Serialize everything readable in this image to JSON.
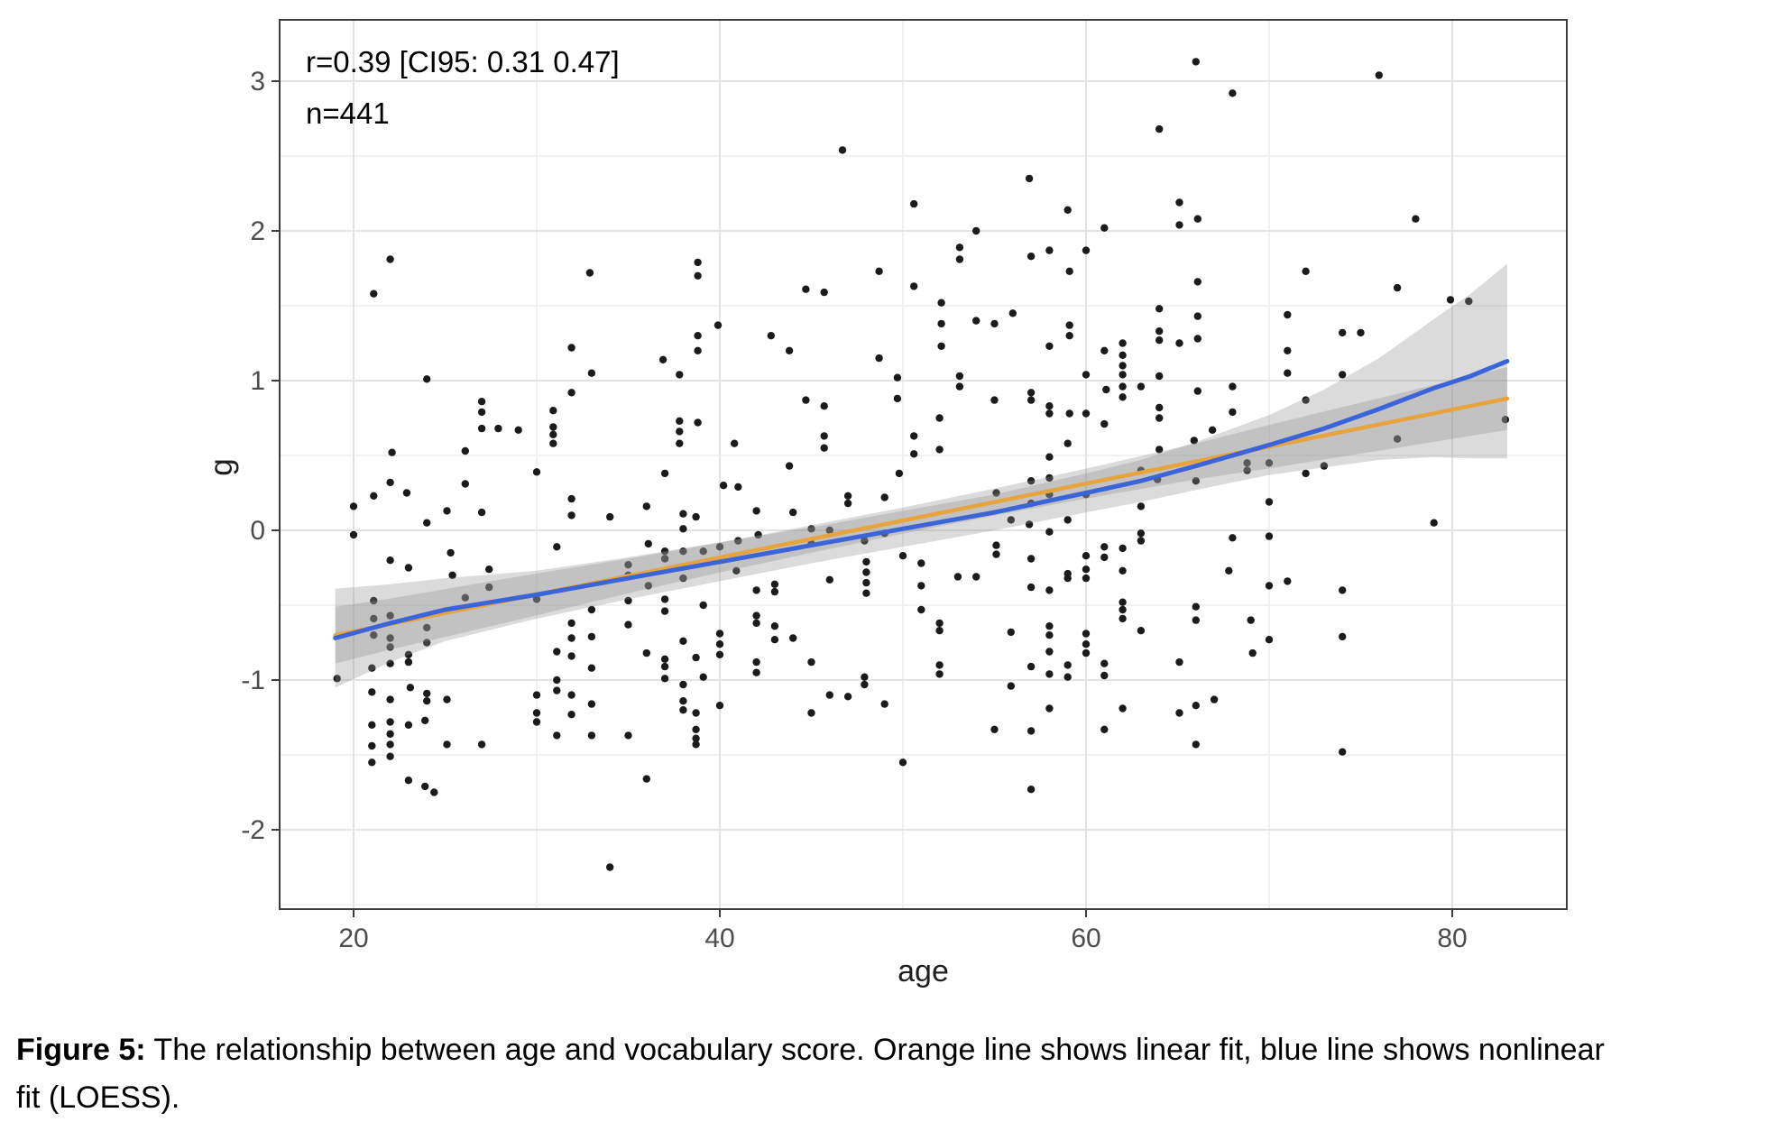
{
  "figure": {
    "stats_annotation": {
      "line1": "r=0.39 [CI95: 0.31 0.47]",
      "line2": "n=441"
    },
    "x_axis": {
      "title": "age",
      "major_ticks": [
        20,
        40,
        60,
        80
      ],
      "minor_ticks": [
        30,
        50,
        70
      ],
      "range": [
        15.9,
        86.3
      ]
    },
    "y_axis": {
      "title": "g",
      "major_ticks": [
        -2,
        -1,
        0,
        1,
        2,
        3
      ],
      "minor_ticks": [
        -2.5,
        -1.5,
        -0.5,
        0.5,
        1.5,
        2.5
      ],
      "range": [
        -2.55,
        3.42
      ]
    },
    "colors": {
      "linear_fit": "#E7A33C",
      "loess_fit": "#3A64D8",
      "ribbon": "#8F8F8F",
      "point": "#1B1B1B",
      "grid_major": "#E3E3E3",
      "grid_minor": "#F1F1F1",
      "panel_border": "#3C3C3C",
      "axis_text": "#4D4D4D"
    }
  },
  "caption": {
    "label": "Figure 5:",
    "line1": "The relationship between age and vocabulary score. Orange line shows linear fit, blue line shows nonlinear",
    "line2": "fit (LOESS)."
  },
  "chart_data": {
    "type": "scatter",
    "title": "",
    "xlabel": "age",
    "ylabel": "g",
    "xlim": [
      15.9,
      86.3
    ],
    "ylim": [
      -2.55,
      3.42
    ],
    "grid": true,
    "n": 441,
    "r": 0.39,
    "r_ci95": [
      0.31,
      0.47
    ],
    "points": [
      [
        22,
        1.81
      ],
      [
        21.1,
        1.58
      ],
      [
        32.9,
        1.72
      ],
      [
        31.9,
        1.22
      ],
      [
        33,
        1.05
      ],
      [
        24,
        1.01
      ],
      [
        31.9,
        0.92
      ],
      [
        27,
        0.86
      ],
      [
        27,
        0.79
      ],
      [
        27,
        0.68
      ],
      [
        27.9,
        0.68
      ],
      [
        29,
        0.67
      ],
      [
        30.9,
        0.8
      ],
      [
        30.9,
        0.69
      ],
      [
        30.9,
        0.64
      ],
      [
        30.9,
        0.58
      ],
      [
        22.1,
        0.52
      ],
      [
        26.1,
        0.53
      ],
      [
        30,
        0.39
      ],
      [
        22,
        0.32
      ],
      [
        26.1,
        0.31
      ],
      [
        21.1,
        0.23
      ],
      [
        22.9,
        0.25
      ],
      [
        25.1,
        0.13
      ],
      [
        27,
        0.12
      ],
      [
        20,
        0.16
      ],
      [
        20,
        -0.03
      ],
      [
        24,
        0.05
      ],
      [
        31.9,
        0.21
      ],
      [
        31.9,
        0.1
      ],
      [
        22,
        -0.2
      ],
      [
        23,
        -0.25
      ],
      [
        25.3,
        -0.15
      ],
      [
        25.4,
        -0.3
      ],
      [
        27.4,
        -0.26
      ],
      [
        27.4,
        -0.38
      ],
      [
        21.1,
        -0.47
      ],
      [
        21.1,
        -0.59
      ],
      [
        21.1,
        -0.7
      ],
      [
        22,
        -0.57
      ],
      [
        22,
        -0.72
      ],
      [
        22,
        -0.78
      ],
      [
        24,
        -0.65
      ],
      [
        24,
        -0.75
      ],
      [
        19.1,
        -0.99
      ],
      [
        21,
        -0.92
      ],
      [
        22,
        -0.89
      ],
      [
        23,
        -0.83
      ],
      [
        23,
        -0.88
      ],
      [
        21,
        -1.08
      ],
      [
        22,
        -1.13
      ],
      [
        23.1,
        -1.05
      ],
      [
        24,
        -1.09
      ],
      [
        24,
        -1.14
      ],
      [
        25.1,
        -1.13
      ],
      [
        22,
        -1.28
      ],
      [
        22,
        -1.36
      ],
      [
        22,
        -1.43
      ],
      [
        21,
        -1.3
      ],
      [
        21,
        -1.44
      ],
      [
        23,
        -1.3
      ],
      [
        23.9,
        -1.27
      ],
      [
        25.1,
        -1.43
      ],
      [
        27,
        -1.43
      ],
      [
        22,
        -1.51
      ],
      [
        21,
        -1.55
      ],
      [
        23,
        -1.67
      ],
      [
        23.9,
        -1.71
      ],
      [
        24.4,
        -1.75
      ],
      [
        26.1,
        -0.45
      ],
      [
        30,
        -0.46
      ],
      [
        31.1,
        -0.11
      ],
      [
        31.9,
        -0.62
      ],
      [
        31.9,
        -0.72
      ],
      [
        31.9,
        -0.84
      ],
      [
        33,
        -0.53
      ],
      [
        33,
        -0.71
      ],
      [
        33,
        -0.92
      ],
      [
        33,
        -1.16
      ],
      [
        31.1,
        -0.81
      ],
      [
        31.1,
        -1
      ],
      [
        31.1,
        -1.07
      ],
      [
        30,
        -1.1
      ],
      [
        30,
        -1.22
      ],
      [
        30,
        -1.28
      ],
      [
        31.9,
        -1.1
      ],
      [
        31.1,
        -1.37
      ],
      [
        33,
        -1.37
      ],
      [
        31.9,
        -1.23
      ],
      [
        46.7,
        2.54
      ],
      [
        50.6,
        2.18
      ],
      [
        38.8,
        1.79
      ],
      [
        38.8,
        1.7
      ],
      [
        48.7,
        1.73
      ],
      [
        44.7,
        1.61
      ],
      [
        45.7,
        1.59
      ],
      [
        50.6,
        1.63
      ],
      [
        39.9,
        1.37
      ],
      [
        38.8,
        1.3
      ],
      [
        38.8,
        1.2
      ],
      [
        42.8,
        1.3
      ],
      [
        43.8,
        1.2
      ],
      [
        36.9,
        1.14
      ],
      [
        37.8,
        1.04
      ],
      [
        48.7,
        1.15
      ],
      [
        49.7,
        1.02
      ],
      [
        49.7,
        0.88
      ],
      [
        44.7,
        0.87
      ],
      [
        45.7,
        0.83
      ],
      [
        37.8,
        0.73
      ],
      [
        37.8,
        0.66
      ],
      [
        37.8,
        0.58
      ],
      [
        38.8,
        0.72
      ],
      [
        40.8,
        0.58
      ],
      [
        45.7,
        0.63
      ],
      [
        45.7,
        0.55
      ],
      [
        43.8,
        0.43
      ],
      [
        50.6,
        0.63
      ],
      [
        50.6,
        0.51
      ],
      [
        37,
        0.38
      ],
      [
        49.8,
        0.38
      ],
      [
        40.2,
        0.3
      ],
      [
        41,
        0.29
      ],
      [
        36,
        0.16
      ],
      [
        34,
        0.09
      ],
      [
        38,
        0.11
      ],
      [
        38,
        0.01
      ],
      [
        38.7,
        0.09
      ],
      [
        42,
        0.13
      ],
      [
        44,
        0.12
      ],
      [
        47,
        0.23
      ],
      [
        47,
        0.18
      ],
      [
        49,
        0.22
      ],
      [
        45,
        0.01
      ],
      [
        45,
        -0.09
      ],
      [
        46,
        0
      ],
      [
        49,
        -0.02
      ],
      [
        47.9,
        -0.07
      ],
      [
        41,
        -0.07
      ],
      [
        42.1,
        -0.03
      ],
      [
        36.1,
        -0.09
      ],
      [
        37,
        -0.14
      ],
      [
        37,
        -0.19
      ],
      [
        38,
        -0.14
      ],
      [
        39.1,
        -0.14
      ],
      [
        40,
        -0.11
      ],
      [
        35,
        -0.23
      ],
      [
        35,
        -0.3
      ],
      [
        36.1,
        -0.37
      ],
      [
        38,
        -0.32
      ],
      [
        40.9,
        -0.27
      ],
      [
        42,
        -0.4
      ],
      [
        43,
        -0.36
      ],
      [
        43,
        -0.41
      ],
      [
        46,
        -0.33
      ],
      [
        48,
        -0.21
      ],
      [
        48,
        -0.28
      ],
      [
        48,
        -0.35
      ],
      [
        48,
        -0.42
      ],
      [
        50,
        -0.17
      ],
      [
        51,
        -0.22
      ],
      [
        51,
        -0.37
      ],
      [
        51,
        -0.53
      ],
      [
        35,
        -0.47
      ],
      [
        37,
        -0.46
      ],
      [
        37,
        -0.54
      ],
      [
        39.1,
        -0.5
      ],
      [
        35,
        -0.63
      ],
      [
        42,
        -0.57
      ],
      [
        42,
        -0.62
      ],
      [
        43,
        -0.64
      ],
      [
        44,
        -0.72
      ],
      [
        43,
        -0.73
      ],
      [
        38,
        -0.74
      ],
      [
        40,
        -0.69
      ],
      [
        40,
        -0.76
      ],
      [
        40,
        -0.83
      ],
      [
        36,
        -0.82
      ],
      [
        37,
        -0.86
      ],
      [
        37,
        -0.91
      ],
      [
        38.7,
        -0.85
      ],
      [
        42,
        -0.88
      ],
      [
        42,
        -0.95
      ],
      [
        45,
        -0.88
      ],
      [
        37,
        -0.99
      ],
      [
        38,
        -1.03
      ],
      [
        39.1,
        -0.98
      ],
      [
        46,
        -1.1
      ],
      [
        47,
        -1.11
      ],
      [
        47.9,
        -0.98
      ],
      [
        47.9,
        -1.03
      ],
      [
        49,
        -1.16
      ],
      [
        38,
        -1.14
      ],
      [
        38,
        -1.2
      ],
      [
        40,
        -1.17
      ],
      [
        38.7,
        -1.22
      ],
      [
        45,
        -1.22
      ],
      [
        50,
        -1.55
      ],
      [
        35,
        -1.37
      ],
      [
        38.7,
        -1.33
      ],
      [
        38.7,
        -1.39
      ],
      [
        38.7,
        -1.43
      ],
      [
        36,
        -1.66
      ],
      [
        34,
        -2.25
      ],
      [
        66,
        3.13
      ],
      [
        68,
        2.92
      ],
      [
        64,
        2.68
      ],
      [
        56.9,
        2.35
      ],
      [
        59,
        2.14
      ],
      [
        65.1,
        2.19
      ],
      [
        66.1,
        2.08
      ],
      [
        65.1,
        2.04
      ],
      [
        54,
        2
      ],
      [
        61,
        2.02
      ],
      [
        53.1,
        1.89
      ],
      [
        53.1,
        1.81
      ],
      [
        58,
        1.87
      ],
      [
        57,
        1.83
      ],
      [
        60,
        1.87
      ],
      [
        59.1,
        1.73
      ],
      [
        66.1,
        1.66
      ],
      [
        52.1,
        1.52
      ],
      [
        64,
        1.48
      ],
      [
        66.1,
        1.43
      ],
      [
        52.1,
        1.38
      ],
      [
        54,
        1.4
      ],
      [
        55,
        1.38
      ],
      [
        56,
        1.45
      ],
      [
        59.1,
        1.37
      ],
      [
        59.1,
        1.3
      ],
      [
        52.1,
        1.23
      ],
      [
        58,
        1.23
      ],
      [
        64,
        1.33
      ],
      [
        64,
        1.27
      ],
      [
        65.1,
        1.25
      ],
      [
        66.1,
        1.28
      ],
      [
        61,
        1.2
      ],
      [
        62,
        1.25
      ],
      [
        62,
        1.17
      ],
      [
        62,
        1.1
      ],
      [
        62,
        1.04
      ],
      [
        62,
        0.96
      ],
      [
        62,
        0.89
      ],
      [
        53.1,
        1.03
      ],
      [
        53.1,
        0.96
      ],
      [
        60,
        1.04
      ],
      [
        64,
        1.03
      ],
      [
        61.1,
        0.94
      ],
      [
        63,
        0.96
      ],
      [
        66.1,
        0.93
      ],
      [
        68,
        0.96
      ],
      [
        55,
        0.87
      ],
      [
        57,
        0.92
      ],
      [
        57,
        0.87
      ],
      [
        58,
        0.83
      ],
      [
        58,
        0.78
      ],
      [
        59.1,
        0.78
      ],
      [
        60,
        0.78
      ],
      [
        64,
        0.82
      ],
      [
        64,
        0.75
      ],
      [
        61,
        0.71
      ],
      [
        68,
        0.79
      ],
      [
        52,
        0.75
      ],
      [
        59,
        0.58
      ],
      [
        52,
        0.54
      ],
      [
        66.9,
        0.67
      ],
      [
        65.9,
        0.6
      ],
      [
        58,
        0.49
      ],
      [
        64,
        0.54
      ],
      [
        63,
        0.4
      ],
      [
        68.8,
        0.45
      ],
      [
        68.8,
        0.4
      ],
      [
        55.1,
        0.25
      ],
      [
        57,
        0.33
      ],
      [
        58,
        0.35
      ],
      [
        58,
        0.24
      ],
      [
        60,
        0.24
      ],
      [
        63.9,
        0.34
      ],
      [
        66,
        0.33
      ],
      [
        57,
        0.18
      ],
      [
        55.9,
        0.07
      ],
      [
        56.9,
        0.04
      ],
      [
        59,
        0.07
      ],
      [
        63,
        0.16
      ],
      [
        58,
        -0.01
      ],
      [
        63,
        -0.02
      ],
      [
        63,
        -0.07
      ],
      [
        68,
        -0.05
      ],
      [
        55.1,
        -0.1
      ],
      [
        55.1,
        -0.16
      ],
      [
        57,
        -0.19
      ],
      [
        61,
        -0.11
      ],
      [
        61,
        -0.18
      ],
      [
        62,
        -0.12
      ],
      [
        60,
        -0.17
      ],
      [
        60,
        -0.26
      ],
      [
        60,
        -0.32
      ],
      [
        53,
        -0.31
      ],
      [
        54,
        -0.31
      ],
      [
        59,
        -0.29
      ],
      [
        59,
        -0.32
      ],
      [
        62,
        -0.27
      ],
      [
        67.8,
        -0.27
      ],
      [
        57,
        -0.38
      ],
      [
        58,
        -0.4
      ],
      [
        62,
        -0.48
      ],
      [
        62,
        -0.53
      ],
      [
        62,
        -0.59
      ],
      [
        66,
        -0.51
      ],
      [
        66,
        -0.6
      ],
      [
        69,
        -0.6
      ],
      [
        52,
        -0.62
      ],
      [
        52,
        -0.67
      ],
      [
        55.9,
        -0.68
      ],
      [
        58,
        -0.64
      ],
      [
        58,
        -0.7
      ],
      [
        60,
        -0.69
      ],
      [
        60,
        -0.76
      ],
      [
        60,
        -0.82
      ],
      [
        63,
        -0.67
      ],
      [
        58,
        -0.81
      ],
      [
        52,
        -0.9
      ],
      [
        52,
        -0.96
      ],
      [
        57,
        -0.91
      ],
      [
        59,
        -0.9
      ],
      [
        59,
        -0.98
      ],
      [
        58,
        -0.96
      ],
      [
        61,
        -0.89
      ],
      [
        61,
        -0.97
      ],
      [
        65.1,
        -0.88
      ],
      [
        69.1,
        -0.82
      ],
      [
        55.9,
        -1.04
      ],
      [
        58,
        -1.19
      ],
      [
        62,
        -1.19
      ],
      [
        65.1,
        -1.22
      ],
      [
        66,
        -1.17
      ],
      [
        67,
        -1.13
      ],
      [
        55,
        -1.33
      ],
      [
        57,
        -1.34
      ],
      [
        61,
        -1.33
      ],
      [
        66,
        -1.43
      ],
      [
        57,
        -1.73
      ],
      [
        76,
        3.04
      ],
      [
        78,
        2.08
      ],
      [
        72,
        1.73
      ],
      [
        77,
        1.62
      ],
      [
        79.9,
        1.54
      ],
      [
        80.9,
        1.53
      ],
      [
        71,
        1.44
      ],
      [
        74,
        1.32
      ],
      [
        75,
        1.32
      ],
      [
        71,
        1.2
      ],
      [
        71,
        1.05
      ],
      [
        74,
        1.04
      ],
      [
        72,
        0.87
      ],
      [
        82.9,
        0.74
      ],
      [
        77,
        0.61
      ],
      [
        70,
        0.45
      ],
      [
        73,
        0.43
      ],
      [
        72,
        0.38
      ],
      [
        70,
        0.19
      ],
      [
        79,
        0.05
      ],
      [
        70,
        -0.04
      ],
      [
        70,
        -0.37
      ],
      [
        71,
        -0.34
      ],
      [
        74,
        -0.4
      ],
      [
        74,
        -0.71
      ],
      [
        70,
        -0.73
      ],
      [
        74,
        -1.48
      ]
    ],
    "linear_fit": {
      "x_start": 19,
      "x_end": 83,
      "y_start": -0.7,
      "y_end": 0.88
    },
    "loess_fit": {
      "x": [
        19,
        22,
        25,
        30,
        35,
        40,
        45,
        50,
        55,
        60,
        63,
        66,
        70,
        73,
        76,
        79,
        81,
        83
      ],
      "y": [
        -0.72,
        -0.62,
        -0.53,
        -0.43,
        -0.32,
        -0.21,
        -0.1,
        0.01,
        0.12,
        0.25,
        0.33,
        0.43,
        0.57,
        0.68,
        0.81,
        0.95,
        1.03,
        1.13
      ],
      "ci_halfwidth": [
        0.33,
        0.26,
        0.21,
        0.16,
        0.14,
        0.13,
        0.12,
        0.12,
        0.12,
        0.13,
        0.14,
        0.16,
        0.2,
        0.26,
        0.34,
        0.46,
        0.55,
        0.65
      ]
    },
    "linear_ci_halfwidth": [
      0.19,
      0.17,
      0.16,
      0.14,
      0.115,
      0.1,
      0.092,
      0.087,
      0.09,
      0.1,
      0.11,
      0.12,
      0.145,
      0.16,
      0.175,
      0.19,
      0.2,
      0.21
    ]
  }
}
